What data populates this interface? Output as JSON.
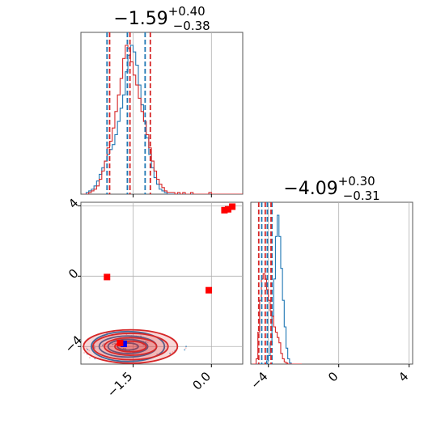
{
  "chart_data": [
    {
      "type": "histogram",
      "panel": "marginal-x",
      "title": {
        "value": "−1.59",
        "plus": "+0.40",
        "minus": "−0.38"
      },
      "xlim": [
        -2.5,
        0.6
      ],
      "grid": true,
      "series": [
        {
          "name": "",
          "color": "#1f77b4",
          "bin_start": -2.45,
          "bin_width": 0.05,
          "counts": [
            0,
            1,
            2,
            3,
            5,
            8,
            12,
            16,
            20,
            24,
            27,
            30,
            36,
            44,
            52,
            60,
            74,
            84,
            90,
            86,
            78,
            66,
            54,
            44,
            34,
            24,
            16,
            10,
            6,
            3,
            2,
            1,
            0,
            0,
            0,
            0,
            0,
            0,
            0,
            0,
            0,
            0,
            0,
            0,
            0,
            0,
            0,
            0,
            0,
            0,
            0,
            0,
            0,
            0,
            0,
            0,
            0,
            0,
            0,
            0,
            0,
            0
          ]
        },
        {
          "name": "",
          "color": "#d62728",
          "bin_start": -2.45,
          "bin_width": 0.05,
          "counts": [
            0,
            0,
            1,
            2,
            3,
            5,
            9,
            14,
            20,
            28,
            32,
            40,
            50,
            60,
            70,
            82,
            90,
            88,
            80,
            72,
            66,
            58,
            50,
            44,
            36,
            28,
            20,
            14,
            9,
            6,
            4,
            2,
            1,
            1,
            1,
            0,
            1,
            0,
            1,
            0,
            0,
            1,
            0,
            0,
            0,
            0,
            0,
            0,
            1,
            0,
            0,
            0,
            0,
            0,
            0,
            0,
            0,
            0,
            0,
            0,
            0,
            0
          ]
        }
      ],
      "quantile_lines": [
        {
          "color": "#1f77b4",
          "values": [
            -2.0,
            -1.61,
            -1.27
          ]
        },
        {
          "color": "#d62728",
          "values": [
            -1.95,
            -1.56,
            -1.17
          ]
        }
      ]
    },
    {
      "type": "histogram",
      "panel": "marginal-y",
      "title": {
        "value": "−4.09",
        "plus": "+0.30",
        "minus": "−0.31"
      },
      "xlim": [
        -5.0,
        4.2
      ],
      "grid": true,
      "series": [
        {
          "name": "",
          "color": "#1f77b4",
          "bin_start": -4.9,
          "bin_width": 0.1,
          "counts": [
            0,
            0,
            0,
            0,
            0,
            0,
            0,
            1,
            3,
            8,
            20,
            45,
            80,
            120,
            140,
            120,
            90,
            60,
            35,
            15,
            5,
            1,
            0,
            0,
            0,
            0,
            0,
            0
          ]
        },
        {
          "name": "",
          "color": "#d62728",
          "bin_start": -4.9,
          "bin_width": 0.1,
          "counts": [
            0,
            0,
            5,
            30,
            60,
            80,
            85,
            80,
            70,
            60,
            50,
            45,
            35,
            30,
            25,
            20,
            10,
            5,
            2,
            1,
            0,
            0,
            0,
            0,
            0,
            0,
            0,
            0
          ]
        }
      ],
      "quantile_lines": [
        {
          "color": "#1f77b4",
          "values": [
            -4.38,
            -4.06,
            -3.8
          ]
        },
        {
          "color": "#d62728",
          "values": [
            -4.55,
            -4.18,
            -3.85
          ]
        }
      ]
    },
    {
      "type": "scatter",
      "panel": "joint",
      "xlim": [
        -2.5,
        0.6
      ],
      "ylim": [
        -5.0,
        4.2
      ],
      "grid": true,
      "x_ticks": [
        "−1.5",
        "0.0"
      ],
      "y_ticks": [
        "−4",
        "0",
        "4"
      ],
      "x_tick_values": [
        -1.5,
        0.0
      ],
      "y_tick_values": [
        -4,
        0,
        4
      ],
      "bottom_x_ticks": [
        "−4",
        "0",
        "4"
      ],
      "bottom_x_tick_values": [
        -4,
        0,
        4
      ],
      "outlier_points": [
        {
          "x": -2.0,
          "y": -0.05,
          "color": "#ff0000"
        },
        {
          "x": -0.05,
          "y": -0.8,
          "color": "#ff0000"
        },
        {
          "x": 0.25,
          "y": 3.75,
          "color": "#ff0000"
        },
        {
          "x": 0.32,
          "y": 3.8,
          "color": "#ff0000"
        },
        {
          "x": 0.4,
          "y": 3.95,
          "color": "#ff0000"
        }
      ],
      "mode_points": [
        {
          "x": -1.68,
          "y": -3.85,
          "color": "#0000ff"
        },
        {
          "x": -1.75,
          "y": -3.8,
          "color": "#ff0000"
        }
      ],
      "contours": [
        {
          "color": "#1f77b4",
          "center": [
            -1.6,
            -4.0
          ],
          "radii": [
            [
              0.7,
              0.85
            ],
            [
              0.55,
              0.6
            ],
            [
              0.38,
              0.4
            ],
            [
              0.2,
              0.2
            ]
          ]
        },
        {
          "color": "#d62728",
          "center": [
            -1.55,
            -4.0
          ],
          "radii": [
            [
              0.9,
              0.95
            ],
            [
              0.72,
              0.75
            ],
            [
              0.5,
              0.5
            ],
            [
              0.3,
              0.3
            ]
          ]
        }
      ]
    }
  ]
}
